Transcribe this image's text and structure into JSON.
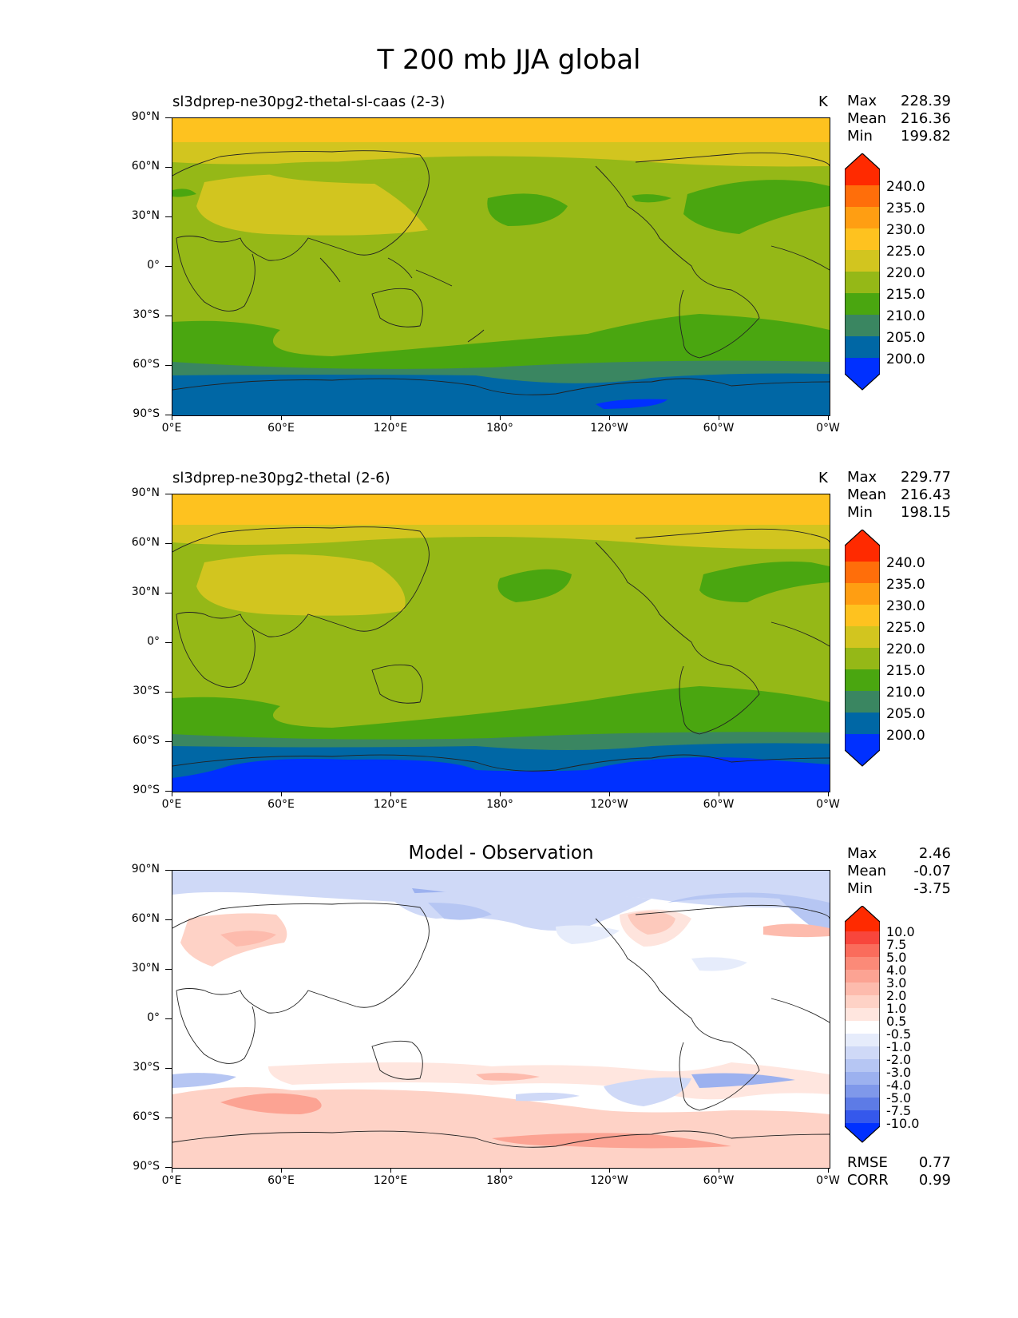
{
  "figure_title": "T 200 mb JJA global",
  "panels": [
    {
      "title": "sl3dprep-ne30pg2-thetal-sl-caas (2-3)",
      "units": "K",
      "stats": {
        "max_label": "Max",
        "max": "228.39",
        "mean_label": "Mean",
        "mean": "216.36",
        "min_label": "Min",
        "min": "199.82"
      }
    },
    {
      "title": "sl3dprep-ne30pg2-thetal (2-6)",
      "units": "K",
      "stats": {
        "max_label": "Max",
        "max": "229.77",
        "mean_label": "Mean",
        "mean": "216.43",
        "min_label": "Min",
        "min": "198.15"
      }
    },
    {
      "title": "Model - Observation",
      "units": "",
      "stats": {
        "max_label": "Max",
        "max": "2.46",
        "mean_label": "Mean",
        "mean": "-0.07",
        "min_label": "Min",
        "min": "-3.75"
      },
      "rmse_label": "RMSE",
      "rmse": "0.77",
      "corr_label": "CORR",
      "corr": "0.99"
    }
  ],
  "axes": {
    "y_ticks": [
      "90°N",
      "60°N",
      "30°N",
      "0°",
      "30°S",
      "60°S",
      "90°S"
    ],
    "x_ticks": [
      "0°E",
      "60°E",
      "120°E",
      "180°",
      "120°W",
      "60°W",
      "0°W"
    ]
  },
  "colorbar_field": {
    "labels": [
      "240.0",
      "235.0",
      "230.0",
      "225.0",
      "220.0",
      "215.0",
      "210.0",
      "205.0",
      "200.0"
    ],
    "colors": [
      "#ff2a00",
      "#ff6e0a",
      "#ff9e12",
      "#fec21f",
      "#d2c51f",
      "#95b817",
      "#4aa610",
      "#3a8661",
      "#0067a5",
      "#0030ff"
    ]
  },
  "colorbar_diff": {
    "labels": [
      "10.0",
      "7.5",
      "5.0",
      "4.0",
      "3.0",
      "2.0",
      "1.0",
      "0.5",
      "-0.5",
      "-1.0",
      "-2.0",
      "-3.0",
      "-4.0",
      "-5.0",
      "-7.5",
      "-10.0"
    ],
    "colors": [
      "#ff2a00",
      "#f8463c",
      "#fa6c5c",
      "#fb8a78",
      "#fca393",
      "#fdbbad",
      "#fed2c6",
      "#ffe6df",
      "#ffffff",
      "#e6ecfb",
      "#cfd9f7",
      "#b6c6f3",
      "#9cb1ef",
      "#7f98ea",
      "#5d7be6",
      "#3558ec",
      "#0030ff"
    ]
  }
}
